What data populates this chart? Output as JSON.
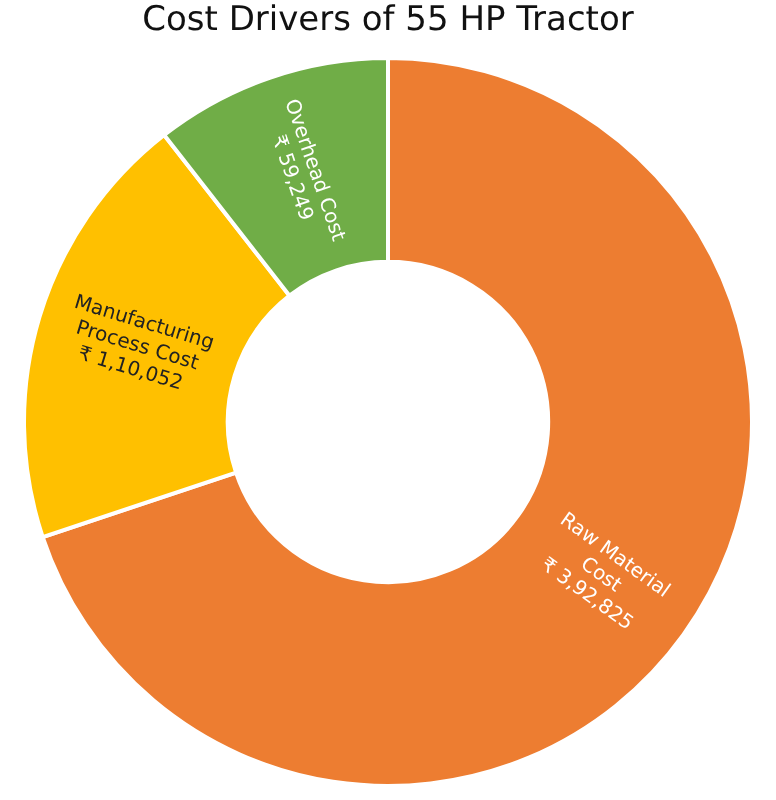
{
  "chart_data": {
    "type": "donut",
    "title": "Cost Drivers of 55 HP Tractor",
    "categories": [
      "Raw Material Cost",
      "Manufacturing Process Cost",
      "Overhead Cost"
    ],
    "values": [
      392825,
      110052,
      59249
    ],
    "value_labels": [
      "₹ 3,92,825",
      "₹ 1,10,052",
      "₹ 59,249"
    ],
    "colors": [
      "#ed7d31",
      "#ffc000",
      "#70ad47"
    ],
    "legend": false
  }
}
